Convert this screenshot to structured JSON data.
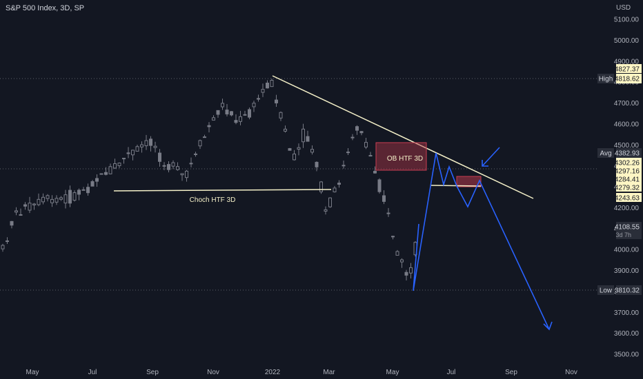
{
  "header": {
    "title": "S&P 500 Index, 3D, SP",
    "currency": "USD"
  },
  "theme": {
    "background": "#131722",
    "candle_color": "#787b86",
    "text_color": "#b2b5be",
    "trendline_color": "#f5f1c9",
    "projection_color": "#2962ff",
    "orderblock_color": "#b2384a"
  },
  "annotations": {
    "ob_label": "OB HTF 3D",
    "choch_label": "Choch HTF 3D"
  },
  "price_tags": {
    "high_label": "High",
    "high_value": "4818.62",
    "low_label": "Low",
    "low_value": "3810.32",
    "avg_label": "Avg",
    "avg_value": "4382.93",
    "last_value": "4108.55",
    "countdown": "3d 7h",
    "level_values": [
      "4827.37",
      "4302.26",
      "4297.16",
      "4284.41",
      "4279.32",
      "4243.63"
    ]
  },
  "chart_data": {
    "type": "candlestick",
    "y_axis_ticks": [
      5100,
      5000,
      4900,
      4800,
      4700,
      4600,
      4500,
      4400,
      4300,
      4200,
      4100,
      4000,
      3900,
      3800,
      3700,
      3600,
      3500
    ],
    "y_axis_labels": [
      "5100.00",
      "5000.00",
      "4900.00",
      "4800.00",
      "4700.00",
      "4600.00",
      "4500.00",
      "4400.00",
      "4300.00",
      "4200.00",
      "4100.00",
      "4000.00",
      "3900.00",
      "3800.00",
      "3700.00",
      "3600.00",
      "3500.00"
    ],
    "ylim": [
      3460,
      5190
    ],
    "x_axis_labels": [
      "May",
      "Jul",
      "Sep",
      "Nov",
      "2022",
      "Mar",
      "May",
      "Jul",
      "Sep",
      "Nov"
    ],
    "candles_summary": {
      "start_close": 4000,
      "high": 4818.62,
      "low": 3810.32,
      "last": 4108.55
    },
    "trendline": {
      "from": [
        "2022 Jan",
        4818
      ],
      "to": [
        "Oct",
        4238
      ]
    },
    "order_block": {
      "top": 4500,
      "bottom": 4290
    },
    "projection_path": [
      4108,
      3800,
      4470,
      4260,
      4390,
      4260,
      4190,
      4290,
      3600
    ]
  }
}
